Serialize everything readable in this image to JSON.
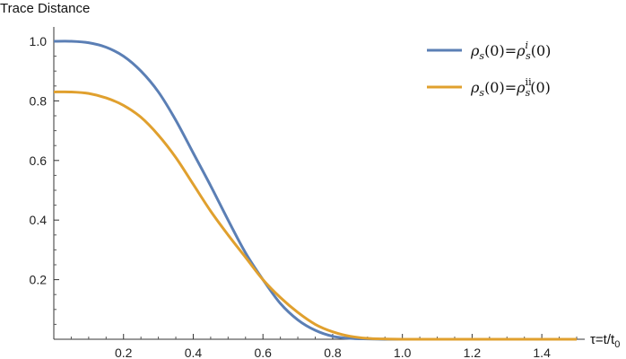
{
  "chart_data": {
    "type": "line",
    "xlabel": "τ=t/t0",
    "xlabel_parts": {
      "main": "τ=t/t",
      "sub": "0"
    },
    "ylabel": "Trace Distance",
    "xlim": [
      0,
      1.5
    ],
    "ylim": [
      0,
      1.0
    ],
    "xticks": [
      0.2,
      0.4,
      0.6,
      0.8,
      1.0,
      1.2,
      1.4
    ],
    "xtick_labels": [
      "0.2",
      "0.4",
      "0.6",
      "0.8",
      "1.0",
      "1.2",
      "1.4"
    ],
    "yticks": [
      0.2,
      0.4,
      0.6,
      0.8,
      1.0
    ],
    "ytick_labels": [
      "0.2",
      "0.4",
      "0.6",
      "0.8",
      "1.0"
    ],
    "grid": false,
    "legend_position": "top-right",
    "series": [
      {
        "name": "ρs(0)=ρsi(0)",
        "color": "#5b7fb5",
        "x": [
          0,
          0.05,
          0.1,
          0.15,
          0.2,
          0.25,
          0.3,
          0.35,
          0.4,
          0.45,
          0.5,
          0.55,
          0.6,
          0.65,
          0.7,
          0.75,
          0.8,
          0.85,
          0.9,
          0.95,
          1.0,
          1.1,
          1.2,
          1.3,
          1.4,
          1.5
        ],
        "values": [
          1.0,
          1.0,
          0.995,
          0.98,
          0.95,
          0.9,
          0.83,
          0.735,
          0.625,
          0.515,
          0.4,
          0.29,
          0.2,
          0.12,
          0.065,
          0.03,
          0.01,
          0.003,
          0.001,
          0.0,
          0.0,
          0.0,
          0.0,
          0.0,
          0.0,
          0.0
        ]
      },
      {
        "name": "ρs(0)=ρsii(0)",
        "color": "#e0a02e",
        "x": [
          0,
          0.05,
          0.1,
          0.15,
          0.2,
          0.25,
          0.3,
          0.35,
          0.4,
          0.45,
          0.5,
          0.55,
          0.6,
          0.65,
          0.7,
          0.75,
          0.8,
          0.85,
          0.9,
          0.95,
          1.0,
          1.1,
          1.2,
          1.3,
          1.4,
          1.5
        ],
        "values": [
          0.83,
          0.83,
          0.825,
          0.81,
          0.785,
          0.745,
          0.685,
          0.61,
          0.52,
          0.43,
          0.35,
          0.275,
          0.2,
          0.14,
          0.09,
          0.05,
          0.025,
          0.01,
          0.003,
          0.001,
          0.0,
          0.0,
          0.0,
          0.0,
          0.0,
          0.0
        ]
      }
    ]
  }
}
